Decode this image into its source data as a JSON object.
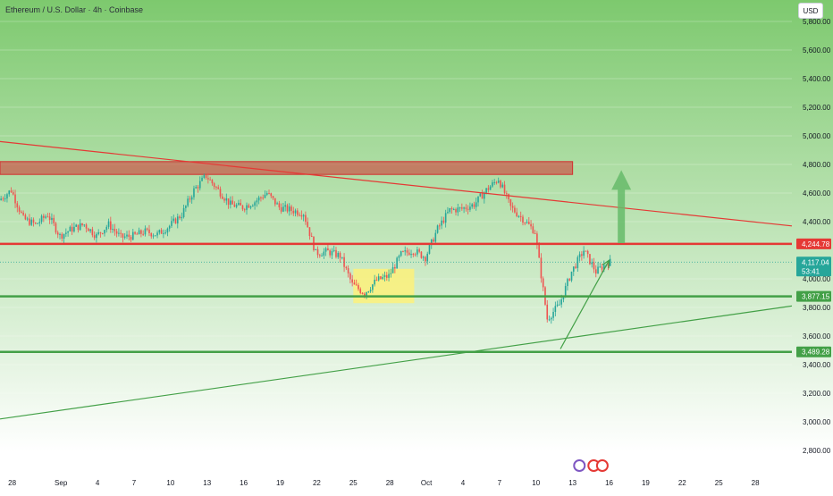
{
  "chart_data": {
    "type": "candlestick",
    "title": "Ethereum / U.S. Dollar · 4h · Coinbase",
    "currency": "USD",
    "ylim": [
      2700,
      5950
    ],
    "yticks": [
      5800,
      5600,
      5400,
      5200,
      5000,
      4800,
      4600,
      4400,
      4000,
      3800,
      3600,
      3400,
      3200,
      3000,
      2800
    ],
    "ytick_labels": [
      "5,800.00",
      "5,600.00",
      "5,400.00",
      "5,200.00",
      "5,000.00",
      "4,800.00",
      "4,600.00",
      "4,400.00",
      "4,000.00",
      "3,800.00",
      "3,600.00",
      "3,400.00",
      "3,200.00",
      "3,000.00",
      "2,800.00"
    ],
    "xlim": [
      "2025-08-27",
      "2025-10-31"
    ],
    "xtick_labels": [
      {
        "date": "2025-08-28",
        "label": "28"
      },
      {
        "date": "2025-09-01",
        "label": "Sep"
      },
      {
        "date": "2025-09-04",
        "label": "4"
      },
      {
        "date": "2025-09-07",
        "label": "7"
      },
      {
        "date": "2025-09-10",
        "label": "10"
      },
      {
        "date": "2025-09-13",
        "label": "13"
      },
      {
        "date": "2025-09-16",
        "label": "16"
      },
      {
        "date": "2025-09-19",
        "label": "19"
      },
      {
        "date": "2025-09-22",
        "label": "22"
      },
      {
        "date": "2025-09-25",
        "label": "25"
      },
      {
        "date": "2025-09-28",
        "label": "28"
      },
      {
        "date": "2025-10-01",
        "label": "Oct"
      },
      {
        "date": "2025-10-04",
        "label": "4"
      },
      {
        "date": "2025-10-07",
        "label": "7"
      },
      {
        "date": "2025-10-10",
        "label": "10"
      },
      {
        "date": "2025-10-13",
        "label": "13"
      },
      {
        "date": "2025-10-16",
        "label": "16"
      },
      {
        "date": "2025-10-19",
        "label": "19"
      },
      {
        "date": "2025-10-22",
        "label": "22"
      },
      {
        "date": "2025-10-25",
        "label": "25"
      },
      {
        "date": "2025-10-28",
        "label": "28"
      }
    ],
    "price_path": [
      [
        "2025-08-27",
        4550
      ],
      [
        "2025-08-28",
        4620
      ],
      [
        "2025-08-29",
        4420
      ],
      [
        "2025-08-30",
        4380
      ],
      [
        "2025-08-31",
        4450
      ],
      [
        "2025-09-01",
        4300
      ],
      [
        "2025-09-02",
        4350
      ],
      [
        "2025-09-03",
        4380
      ],
      [
        "2025-09-04",
        4300
      ],
      [
        "2025-09-05",
        4380
      ],
      [
        "2025-09-06",
        4290
      ],
      [
        "2025-09-07",
        4300
      ],
      [
        "2025-09-08",
        4330
      ],
      [
        "2025-09-09",
        4310
      ],
      [
        "2025-09-10",
        4370
      ],
      [
        "2025-09-11",
        4450
      ],
      [
        "2025-09-12",
        4620
      ],
      [
        "2025-09-13",
        4720
      ],
      [
        "2025-09-14",
        4620
      ],
      [
        "2025-09-15",
        4520
      ],
      [
        "2025-09-16",
        4500
      ],
      [
        "2025-09-17",
        4540
      ],
      [
        "2025-09-18",
        4600
      ],
      [
        "2025-09-19",
        4500
      ],
      [
        "2025-09-20",
        4480
      ],
      [
        "2025-09-21",
        4460
      ],
      [
        "2025-09-22",
        4180
      ],
      [
        "2025-09-23",
        4190
      ],
      [
        "2025-09-24",
        4160
      ],
      [
        "2025-09-25",
        3960
      ],
      [
        "2025-09-26",
        3900
      ],
      [
        "2025-09-27",
        3990
      ],
      [
        "2025-09-28",
        4020
      ],
      [
        "2025-09-29",
        4170
      ],
      [
        "2025-09-30",
        4200
      ],
      [
        "2025-10-01",
        4150
      ],
      [
        "2025-10-02",
        4350
      ],
      [
        "2025-10-03",
        4480
      ],
      [
        "2025-10-04",
        4490
      ],
      [
        "2025-10-05",
        4520
      ],
      [
        "2025-10-06",
        4620
      ],
      [
        "2025-10-07",
        4700
      ],
      [
        "2025-10-08",
        4500
      ],
      [
        "2025-10-09",
        4420
      ],
      [
        "2025-10-10",
        4330
      ],
      [
        "2025-10-11",
        3720
      ],
      [
        "2025-10-12",
        3820
      ],
      [
        "2025-10-13",
        4050
      ],
      [
        "2025-10-14",
        4200
      ],
      [
        "2025-10-15",
        4050
      ],
      [
        "2025-10-16",
        4117
      ]
    ],
    "last_price": {
      "value": 4117.04,
      "label": "4,117.04",
      "countdown": "53:41",
      "color": "#26a69a"
    },
    "levels": [
      {
        "value": 4244.78,
        "label": "4,244.78",
        "color": "#e53935"
      },
      {
        "value": 3877.15,
        "label": "3,877.15",
        "color": "#43a047"
      },
      {
        "value": 3489.28,
        "label": "3,489.28",
        "color": "#43a047"
      }
    ],
    "resistance_zone": {
      "from": "2025-08-27",
      "to": "2025-10-13",
      "low": 4730,
      "high": 4820,
      "color": "#d32f2f"
    },
    "demand_zone": {
      "from": "2025-09-25",
      "to": "2025-09-30",
      "low": 3830,
      "high": 4070,
      "color": "#fff176"
    },
    "downtrend_line": {
      "p1": [
        "2025-08-27",
        4960
      ],
      "p2": [
        "2025-10-31",
        4370
      ],
      "color": "#e53935"
    },
    "uptrend_line": {
      "p1": [
        "2025-08-27",
        3020
      ],
      "p2": [
        "2025-10-31",
        3810
      ],
      "color": "#43a047"
    },
    "short_trend_arrow": {
      "p1": [
        "2025-10-12",
        3510
      ],
      "p2": [
        "2025-10-16",
        4130
      ],
      "color": "#43a047"
    },
    "projection_arrow": {
      "date": "2025-10-17",
      "from": 4250,
      "to": 4760,
      "color": "#66bb6a"
    },
    "colors": {
      "up": "#26a69a",
      "down": "#ef5350",
      "bg_top": "#7dc96e",
      "bg_bottom": "#ffffff"
    }
  }
}
